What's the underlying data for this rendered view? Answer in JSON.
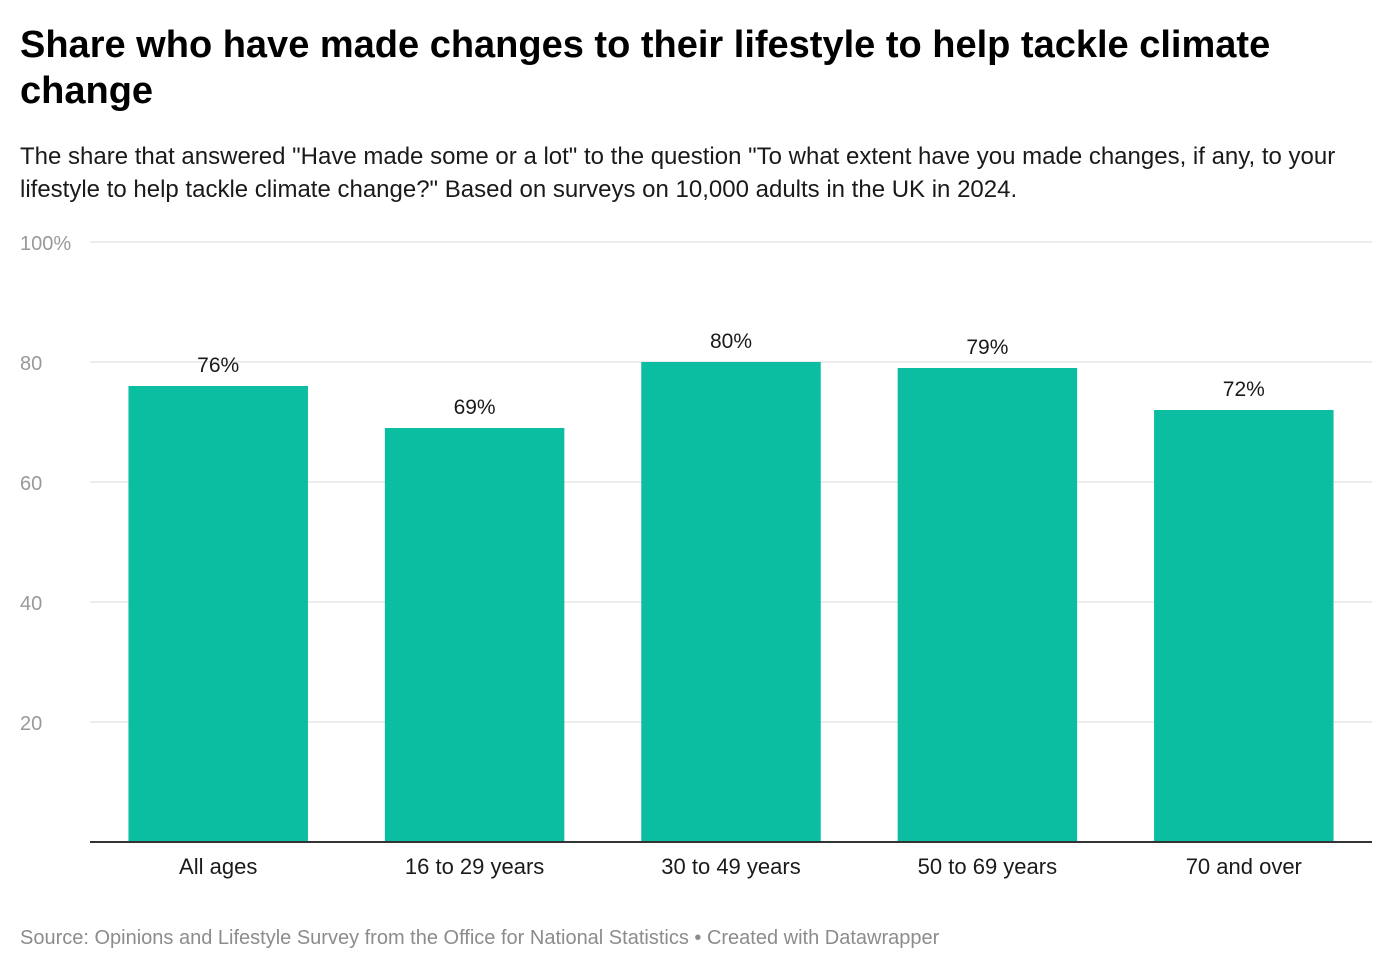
{
  "title": "Share who have made changes to their lifestyle to help tackle climate change",
  "subtitle": "The share that answered \"Have made some or a lot\" to the question \"To what extent have you made changes, if any, to your lifestyle to help tackle climate change?\" Based on surveys on 10,000 adults in the UK in 2024.",
  "footer": {
    "source": "Source: Opinions and Lifestyle Survey from the Office for National Statistics",
    "separator": " • ",
    "credit": "Created with Datawrapper"
  },
  "colors": {
    "bar": "#0bbda1",
    "grid": "#e5e5e5",
    "axis": "#333333",
    "tick_label": "#999999",
    "text": "#1a1a1a"
  },
  "chart_data": {
    "type": "bar",
    "categories": [
      "All ages",
      "16 to 29 years",
      "30 to 49 years",
      "50 to 69 years",
      "70 and over"
    ],
    "values": [
      76,
      69,
      80,
      79,
      72
    ],
    "value_labels": [
      "76%",
      "69%",
      "80%",
      "79%",
      "72%"
    ],
    "ylim": [
      0,
      100
    ],
    "yticks": [
      20,
      40,
      60,
      80,
      100
    ],
    "ytick_labels": [
      "20",
      "40",
      "60",
      "80",
      "100%"
    ],
    "grid": true,
    "legend": "none"
  }
}
